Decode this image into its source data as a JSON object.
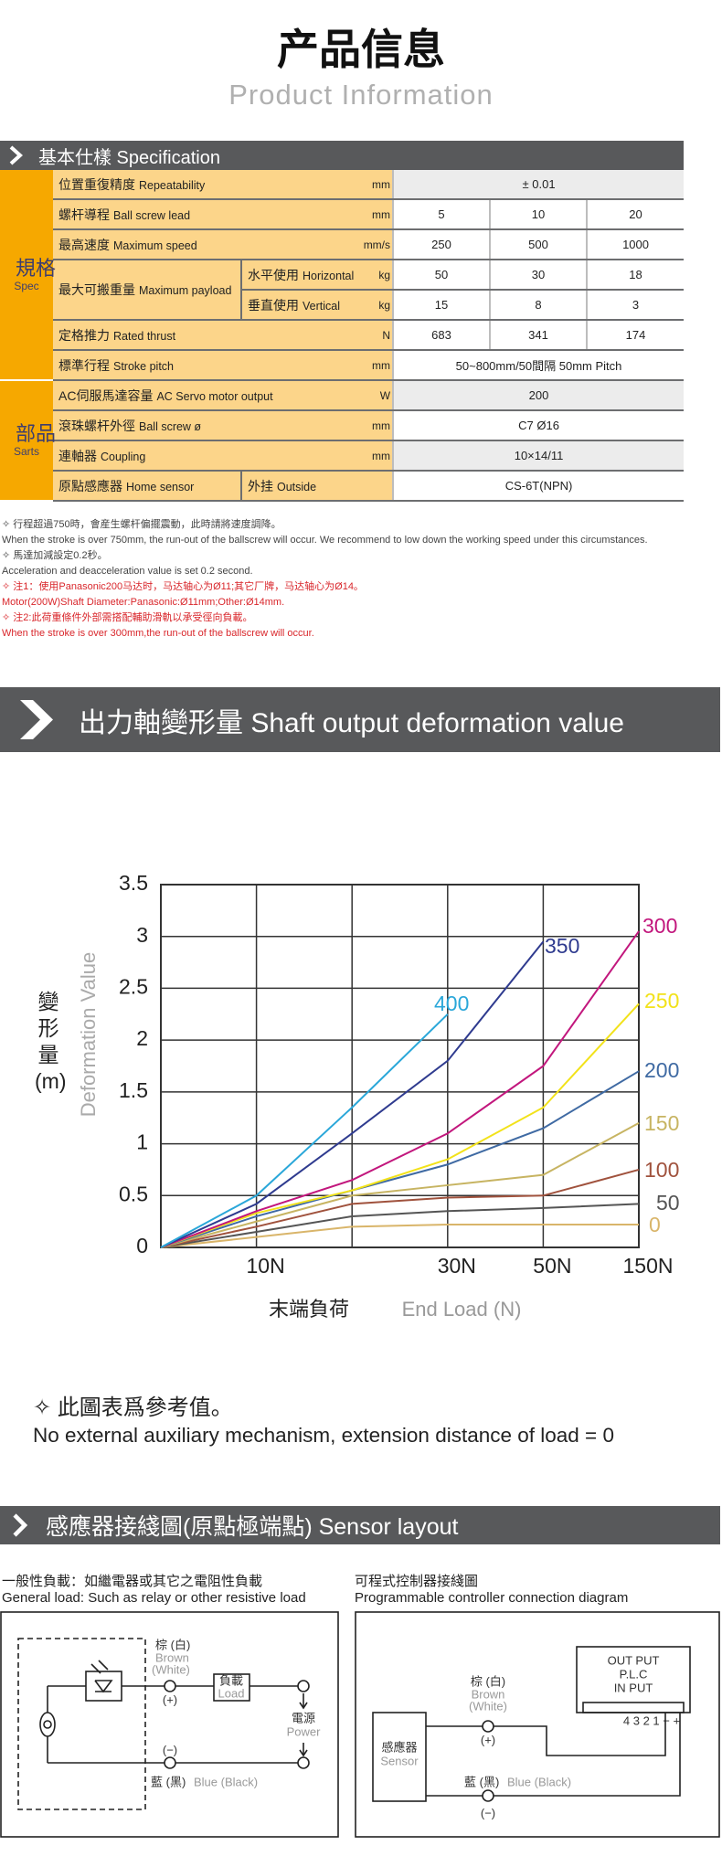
{
  "header": {
    "title": "产品信息",
    "subtitle": "Product Information"
  },
  "spec": {
    "title": "基本仕樣 Specification",
    "groups": [
      {
        "label": "規格",
        "label_en": "Spec",
        "rows": [
          {
            "name": "位置重復精度",
            "name_en": "Repeatability",
            "unit": "mm",
            "values": [
              "± 0.01"
            ]
          },
          {
            "name": "螺杆導程",
            "name_en": "Ball screw lead",
            "unit": "mm",
            "values": [
              "5",
              "10",
              "20"
            ]
          },
          {
            "name": "最高速度",
            "name_en": "Maximum speed",
            "unit": "mm/s",
            "values": [
              "250",
              "500",
              "1000"
            ]
          },
          {
            "name": "最大可搬重量",
            "name_en": "Maximum payload",
            "subrows": [
              {
                "name": "水平使用",
                "name_en": "Horizontal",
                "unit": "kg",
                "values": [
                  "50",
                  "30",
                  "18"
                ]
              },
              {
                "name": "垂直使用",
                "name_en": "Vertical",
                "unit": "kg",
                "values": [
                  "15",
                  "8",
                  "3"
                ]
              }
            ]
          },
          {
            "name": "定格推力",
            "name_en": "Rated thrust",
            "unit": "N",
            "values": [
              "683",
              "341",
              "174"
            ]
          },
          {
            "name": "標準行程",
            "name_en": "Stroke pitch",
            "unit": "mm",
            "values": [
              "50~800mm/50間隔  50mm Pitch"
            ]
          }
        ]
      },
      {
        "label": "部品",
        "label_en": "Sarts",
        "rows": [
          {
            "name": "AC伺服馬達容量",
            "name_en": "AC Servo motor output",
            "unit": "W",
            "values": [
              "200"
            ]
          },
          {
            "name": "滾珠螺杆外徑",
            "name_en": "Ball screw ø",
            "unit": "mm",
            "values": [
              "C7 Ø16"
            ]
          },
          {
            "name": "連軸器",
            "name_en": "Coupling",
            "unit": "mm",
            "values": [
              "10×14/11"
            ]
          },
          {
            "name": "原點感應器",
            "name_en": "Home sensor",
            "sub": "外挂",
            "sub_en": "Outside",
            "values": [
              "CS-6T(NPN)"
            ]
          }
        ]
      }
    ]
  },
  "notes": [
    {
      "zh": "✧ 行程超過750時，會産生螺杆偏擺震動，此時請將速度調降。",
      "en": "When the stroke is over 750mm, the run-out of the ballscrew will occur. We recommend to low down the working speed under this circumstances.",
      "color": "#444444"
    },
    {
      "zh": "✧ 馬達加減設定0.2秒。",
      "en": "Acceleration and deacceleration value is set 0.2 second.",
      "color": "#444444"
    },
    {
      "zh": "✧ 注1：使用Panasonic200马达时，马达轴心为Ø11;其它厂牌，马达轴心为Ø14。",
      "en": "Motor(200W)Shaft Diameter:Panasonic:Ø11mm;Other:Ø14mm.",
      "color": "#d9262b"
    },
    {
      "zh": "✧ 注2:此荷重條件外部需搭配輔助滑軌以承受徑向負載。",
      "en": "When the stroke is over 300mm,the run-out of the ballscrew will occur.",
      "color": "#d9262b"
    }
  ],
  "chart_data": {
    "type": "line",
    "title": "出力軸變形量 Shaft output deformation value",
    "x_label": "末端負荷",
    "x_label_en": "End Load (N)",
    "y_label": "Deformation Value",
    "y_label_zh": "變形量(m)",
    "categories": [
      null,
      "10N",
      null,
      "30N",
      "50N",
      "150N"
    ],
    "ylim": [
      0,
      3.5
    ],
    "yticks": [
      0,
      0.5,
      1,
      1.5,
      2,
      2.5,
      3,
      3.5
    ],
    "grid": true,
    "series": [
      {
        "name": "0",
        "color": "#d9b56a",
        "values": [
          0,
          0.1,
          0.2,
          0.22,
          0.22,
          0.22
        ]
      },
      {
        "name": "50",
        "color": "#555555",
        "values": [
          0,
          0.15,
          0.3,
          0.35,
          0.38,
          0.42
        ]
      },
      {
        "name": "100",
        "color": "#a0523d",
        "values": [
          0,
          0.2,
          0.42,
          0.48,
          0.5,
          0.75
        ]
      },
      {
        "name": "150",
        "color": "#c7b462",
        "values": [
          0,
          0.25,
          0.5,
          0.6,
          0.7,
          1.2
        ]
      },
      {
        "name": "200",
        "color": "#3f6aa3",
        "values": [
          0,
          0.3,
          0.55,
          0.8,
          1.15,
          1.7
        ]
      },
      {
        "name": "250",
        "color": "#f2e21a",
        "values": [
          0,
          0.33,
          0.55,
          0.85,
          1.35,
          2.35
        ]
      },
      {
        "name": "300",
        "color": "#c2177d",
        "values": [
          0,
          0.35,
          0.65,
          1.1,
          1.75,
          3.05
        ]
      },
      {
        "name": "350",
        "color": "#2f3b8f",
        "values": [
          0,
          0.42,
          1.1,
          1.8,
          2.95,
          null
        ]
      },
      {
        "name": "400",
        "color": "#2aa7d9",
        "values": [
          0,
          0.5,
          1.35,
          2.25,
          null,
          null
        ]
      }
    ]
  },
  "chart_note": {
    "zh": "✧ 此圖表爲參考值。",
    "en": "No external auxiliary mechanism, extension distance of load = 0"
  },
  "sensor": {
    "title": "感應器接綫圖(原點極端點) Sensor layout",
    "general": {
      "caption": "一般性負載：如繼電器或其它之電阻性負載",
      "caption_en": "General load: Such as relay or other resistive load",
      "brown": "棕 (白)",
      "brown_en": "Brown",
      "brown_alt": "(White)",
      "plus": "(+)",
      "load": "負載",
      "load_en": "Load",
      "power": "電源",
      "power_en": "Power",
      "minus": "(−)",
      "blue": "藍 (黑)",
      "blue_en": "Blue (Black)"
    },
    "plc": {
      "caption": "可程式控制器接綫圖",
      "caption_en": "Programmable controller connection diagram",
      "output": "OUT PUT",
      "plc": "P.L.C",
      "input": "IN PUT",
      "terminals": "4 3 2 1 − +",
      "sensor": "感應器",
      "sensor_en": "Sensor",
      "brown": "棕 (白)",
      "brown_en": "Brown",
      "brown_alt": "(White)",
      "plus": "(+)",
      "minus": "(−)",
      "blue": "藍 (黑)",
      "blue_en": "Blue (Black)"
    }
  }
}
